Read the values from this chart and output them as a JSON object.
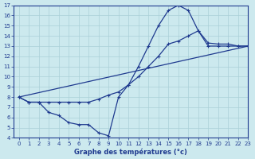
{
  "title": "Graphe des températures (°c)",
  "bg_color": "#cce9ee",
  "grid_color": "#aad0d8",
  "line_color": "#1f3a8f",
  "xlim": [
    -0.5,
    23
  ],
  "ylim": [
    4,
    17
  ],
  "xticks": [
    0,
    1,
    2,
    3,
    4,
    5,
    6,
    7,
    8,
    9,
    10,
    11,
    12,
    13,
    14,
    15,
    16,
    17,
    18,
    19,
    20,
    21,
    22,
    23
  ],
  "yticks": [
    4,
    5,
    6,
    7,
    8,
    9,
    10,
    11,
    12,
    13,
    14,
    15,
    16,
    17
  ],
  "curve1_x": [
    0,
    1,
    2,
    3,
    4,
    5,
    6,
    7,
    8,
    9,
    10,
    11,
    12,
    13,
    14,
    15,
    16,
    17,
    18,
    19,
    20,
    21,
    22,
    23
  ],
  "curve1_y": [
    8,
    7.5,
    7.5,
    7.5,
    7.5,
    7.5,
    7.5,
    7.5,
    7.8,
    8.2,
    8.5,
    9.2,
    10,
    11,
    12,
    13.2,
    13.5,
    14,
    14.5,
    13,
    13,
    13,
    13,
    13
  ],
  "curve2_x": [
    0,
    1,
    2,
    3,
    4,
    5,
    6,
    7,
    8,
    9,
    10,
    11,
    12,
    13,
    14,
    15,
    16,
    17,
    18,
    19,
    20,
    21,
    22,
    23
  ],
  "curve2_y": [
    8,
    7.5,
    7.5,
    6.5,
    6.2,
    5.5,
    5.3,
    5.3,
    4.5,
    4.2,
    8.0,
    9.2,
    11,
    13,
    15,
    16.5,
    17,
    16.5,
    14.5,
    13.3,
    13.2,
    13.2,
    13,
    13
  ],
  "curve3_x": [
    0,
    23
  ],
  "curve3_y": [
    8,
    13
  ]
}
